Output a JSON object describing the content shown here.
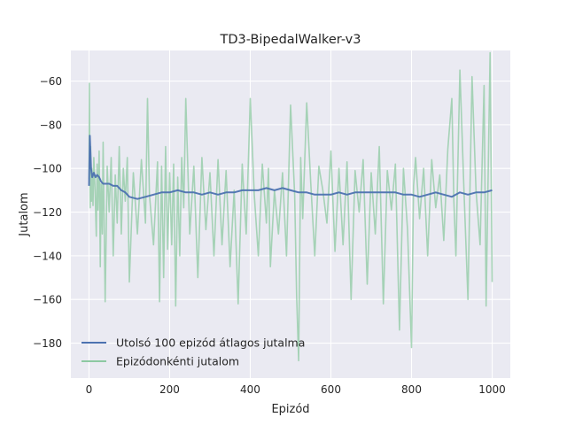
{
  "chart_data": {
    "type": "line",
    "title": "TD3-BipedalWalker-v3",
    "xlabel": "Epizód",
    "ylabel": "Jutalom",
    "xlim": [
      -45,
      1045
    ],
    "ylim": [
      -196,
      -46
    ],
    "xticks": [
      0,
      200,
      400,
      600,
      800,
      1000
    ],
    "yticks": [
      -180,
      -160,
      -140,
      -120,
      -100,
      -80,
      -60
    ],
    "grid": true,
    "legend_position": "lower-left",
    "series": [
      {
        "name": "Utolsó 100 epizód átlagos jutalma",
        "color": "#4c72b0",
        "x": [
          0,
          2,
          5,
          8,
          12,
          16,
          20,
          25,
          30,
          35,
          40,
          50,
          60,
          70,
          80,
          90,
          100,
          120,
          140,
          160,
          180,
          200,
          220,
          240,
          260,
          280,
          300,
          320,
          340,
          360,
          380,
          400,
          420,
          440,
          460,
          480,
          500,
          520,
          540,
          560,
          580,
          600,
          620,
          640,
          660,
          680,
          700,
          720,
          740,
          760,
          780,
          800,
          820,
          840,
          860,
          880,
          900,
          920,
          940,
          960,
          980,
          1000
        ],
        "values": [
          -108,
          -85,
          -100,
          -104,
          -102,
          -104,
          -103,
          -104,
          -106,
          -107,
          -107,
          -107,
          -108,
          -108,
          -110,
          -111,
          -113,
          -114,
          -113,
          -112,
          -111,
          -111,
          -110,
          -111,
          -111,
          -112,
          -111,
          -112,
          -111,
          -111,
          -110,
          -110,
          -110,
          -109,
          -110,
          -109,
          -110,
          -111,
          -111,
          -112,
          -112,
          -112,
          -111,
          -112,
          -111,
          -111,
          -111,
          -111,
          -111,
          -111,
          -112,
          -112,
          -113,
          -112,
          -111,
          -112,
          -113,
          -111,
          -112,
          -111,
          -111,
          -110
        ]
      },
      {
        "name": "Epizódonkénti jutalom",
        "color": "#8dc9a2",
        "x": [
          0,
          1,
          2,
          3,
          4,
          5,
          6,
          7,
          8,
          10,
          12,
          15,
          18,
          20,
          22,
          25,
          28,
          30,
          33,
          35,
          40,
          45,
          50,
          55,
          60,
          65,
          70,
          75,
          80,
          85,
          90,
          95,
          100,
          110,
          120,
          130,
          140,
          145,
          150,
          160,
          170,
          175,
          180,
          185,
          190,
          195,
          200,
          205,
          210,
          215,
          220,
          225,
          230,
          235,
          240,
          250,
          260,
          270,
          280,
          290,
          300,
          310,
          320,
          330,
          340,
          350,
          360,
          370,
          380,
          390,
          400,
          410,
          420,
          430,
          440,
          445,
          450,
          460,
          470,
          480,
          490,
          500,
          510,
          515,
          520,
          525,
          530,
          540,
          550,
          560,
          570,
          580,
          590,
          600,
          610,
          620,
          630,
          640,
          650,
          660,
          670,
          680,
          690,
          700,
          710,
          720,
          730,
          740,
          750,
          760,
          770,
          780,
          790,
          800,
          805,
          810,
          820,
          830,
          840,
          850,
          860,
          870,
          880,
          890,
          900,
          905,
          910,
          920,
          930,
          940,
          950,
          960,
          970,
          980,
          985,
          990,
          995,
          1000
        ],
        "values": [
          -105,
          -61,
          -98,
          -118,
          -90,
          -109,
          -115,
          -100,
          -105,
          -117,
          -95,
          -110,
          -131,
          -98,
          -119,
          -92,
          -145,
          -107,
          -130,
          -88,
          -161,
          -99,
          -120,
          -95,
          -140,
          -103,
          -125,
          -90,
          -130,
          -100,
          -115,
          -95,
          -152,
          -102,
          -130,
          -96,
          -125,
          -68,
          -112,
          -135,
          -97,
          -161,
          -99,
          -150,
          -90,
          -137,
          -102,
          -135,
          -98,
          -163,
          -104,
          -140,
          -95,
          -118,
          -68,
          -130,
          -99,
          -150,
          -95,
          -128,
          -102,
          -140,
          -96,
          -135,
          -101,
          -145,
          -110,
          -162,
          -98,
          -130,
          -68,
          -112,
          -140,
          -98,
          -125,
          -100,
          -145,
          -110,
          -130,
          -102,
          -140,
          -71,
          -112,
          -158,
          -188,
          -95,
          -123,
          -70,
          -107,
          -140,
          -99,
          -110,
          -125,
          -92,
          -138,
          -100,
          -135,
          -97,
          -160,
          -101,
          -120,
          -96,
          -153,
          -102,
          -130,
          -90,
          -162,
          -101,
          -119,
          -98,
          -174,
          -100,
          -128,
          -182,
          -108,
          -95,
          -123,
          -100,
          -140,
          -96,
          -118,
          -103,
          -133,
          -91,
          -68,
          -115,
          -140,
          -55,
          -110,
          -160,
          -58,
          -110,
          -135,
          -62,
          -163,
          -103,
          -47,
          -152
        ]
      }
    ]
  }
}
